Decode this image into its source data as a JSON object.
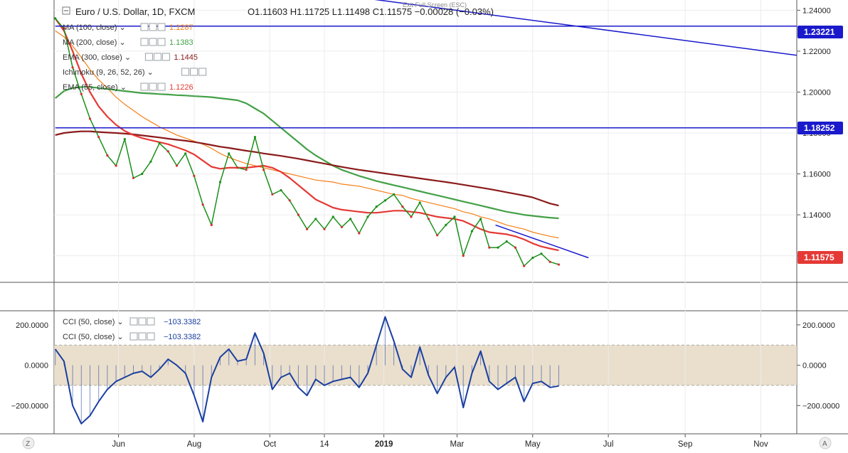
{
  "header": {
    "symbol": "Euro / U.S. Dollar",
    "interval": "1D",
    "source": "FXCM",
    "ohlc": "O1.11603  H1.11725  L1.11498  C1.11575  −0.00028 (−0.03%)",
    "fullscreen_hint": "Exit Full Screen (ESC)"
  },
  "indicators": [
    {
      "name": "MA (100, close)",
      "value": "1.1287",
      "color": "#f57f17"
    },
    {
      "name": "MA (200, close)",
      "value": "1.1383",
      "color": "#43a047"
    },
    {
      "name": "EMA (300, close)",
      "value": "1.1445",
      "color": "#8b1a1a"
    },
    {
      "name": "Ichimoku (9, 26, 52, 26)",
      "value": "",
      "color": "#999999"
    },
    {
      "name": "EMA (55, close)",
      "value": "1.1226",
      "color": "#e53935"
    }
  ],
  "cci_legends": [
    {
      "name": "CCI (50, close)",
      "value": "−103.3382",
      "color": "#1a3fa0"
    },
    {
      "name": "CCI (50, close)",
      "value": "−103.3382",
      "color": "#1a3fa0"
    }
  ],
  "price_labels": [
    {
      "text": "1.23221",
      "color": "#1a1acc"
    },
    {
      "text": "1.18252",
      "color": "#1a1acc"
    },
    {
      "text": "1.11575",
      "color": "#e53935"
    }
  ],
  "corner_labels": {
    "z": "Z",
    "a": "A"
  },
  "chart_data": {
    "type": "line",
    "x": [
      "2018-04-11",
      "2018-04-18",
      "2018-04-25",
      "2018-05-02",
      "2018-05-09",
      "2018-05-16",
      "2018-05-23",
      "2018-05-30",
      "2018-06-06",
      "2018-06-13",
      "2018-06-20",
      "2018-06-27",
      "2018-07-04",
      "2018-07-11",
      "2018-07-18",
      "2018-07-25",
      "2018-08-01",
      "2018-08-08",
      "2018-08-15",
      "2018-08-22",
      "2018-08-29",
      "2018-09-05",
      "2018-09-12",
      "2018-09-19",
      "2018-09-26",
      "2018-10-03",
      "2018-10-10",
      "2018-10-17",
      "2018-10-24",
      "2018-10-31",
      "2018-11-07",
      "2018-11-14",
      "2018-11-21",
      "2018-11-28",
      "2018-12-05",
      "2018-12-12",
      "2018-12-19",
      "2018-12-26",
      "2019-01-02",
      "2019-01-09",
      "2019-01-16",
      "2019-01-23",
      "2019-01-30",
      "2019-02-06",
      "2019-02-13",
      "2019-02-20",
      "2019-02-27",
      "2019-03-06",
      "2019-03-13",
      "2019-03-20",
      "2019-03-27",
      "2019-04-03",
      "2019-04-10",
      "2019-04-17",
      "2019-04-24",
      "2019-05-01",
      "2019-05-08",
      "2019-05-15",
      "2019-05-22"
    ],
    "price_axis_ticks": [
      "1.24000",
      "1.22000",
      "1.20000",
      "1.18000",
      "1.16000",
      "1.14000",
      "1.12000"
    ],
    "price_ylim": [
      1.107,
      1.245
    ],
    "cci_axis_ticks": [
      "200.0000",
      "0.0000",
      "−200.0000"
    ],
    "cci_ylim": [
      -340,
      270
    ],
    "cci_band": [
      -100,
      100
    ],
    "time_axis_ticks": [
      "Jun",
      "Aug",
      "Oct",
      "14",
      "2019",
      "Mar",
      "May",
      "Jul",
      "Sep",
      "Nov"
    ],
    "series": [
      {
        "name": "MA (100, close)",
        "color": "#f57f17",
        "values": [
          1.23,
          1.227,
          1.2225,
          1.217,
          1.211,
          1.206,
          1.202,
          1.1975,
          1.194,
          1.191,
          1.188,
          1.1855,
          1.183,
          1.181,
          1.179,
          1.1775,
          1.176,
          1.1745,
          1.1725,
          1.17,
          1.168,
          1.1665,
          1.165,
          1.164,
          1.163,
          1.162,
          1.161,
          1.16,
          1.159,
          1.158,
          1.157,
          1.1565,
          1.156,
          1.155,
          1.1545,
          1.154,
          1.153,
          1.152,
          1.151,
          1.15,
          1.1495,
          1.148,
          1.147,
          1.146,
          1.145,
          1.144,
          1.143,
          1.1415,
          1.1405,
          1.139,
          1.138,
          1.1365,
          1.135,
          1.134,
          1.133,
          1.1315,
          1.1305,
          1.1295,
          1.1287
        ]
      },
      {
        "name": "MA (200, close)",
        "color": "#43a047",
        "values": [
          1.197,
          1.2005,
          1.202,
          1.2025,
          1.2025,
          1.202,
          1.2015,
          1.201,
          1.2005,
          1.2,
          1.1995,
          1.1993,
          1.199,
          1.1988,
          1.1985,
          1.1983,
          1.198,
          1.1978,
          1.1975,
          1.197,
          1.1965,
          1.196,
          1.1945,
          1.192,
          1.1895,
          1.186,
          1.1825,
          1.179,
          1.1755,
          1.172,
          1.169,
          1.1665,
          1.164,
          1.162,
          1.1605,
          1.159,
          1.1578,
          1.1565,
          1.1555,
          1.1545,
          1.1535,
          1.1525,
          1.1515,
          1.1505,
          1.1495,
          1.1485,
          1.1475,
          1.1465,
          1.1455,
          1.1445,
          1.1435,
          1.1425,
          1.1415,
          1.1408,
          1.14,
          1.1395,
          1.139,
          1.1386,
          1.1383
        ]
      },
      {
        "name": "EMA (300, close)",
        "color": "#8b1a1a",
        "values": [
          1.179,
          1.18,
          1.1805,
          1.1808,
          1.1808,
          1.1805,
          1.1802,
          1.18,
          1.1797,
          1.1793,
          1.1788,
          1.1783,
          1.1778,
          1.1772,
          1.1767,
          1.1762,
          1.1756,
          1.1749,
          1.1741,
          1.1733,
          1.1727,
          1.172,
          1.1713,
          1.1707,
          1.17,
          1.1694,
          1.1688,
          1.1681,
          1.1674,
          1.1666,
          1.1658,
          1.165,
          1.1642,
          1.1634,
          1.1627,
          1.162,
          1.1614,
          1.1608,
          1.1602,
          1.1596,
          1.159,
          1.1584,
          1.1578,
          1.1572,
          1.1566,
          1.156,
          1.1554,
          1.1547,
          1.154,
          1.1533,
          1.1526,
          1.1518,
          1.151,
          1.1502,
          1.1494,
          1.1485,
          1.147,
          1.1455,
          1.1445
        ]
      },
      {
        "name": "EMA (55, close)",
        "color": "#e53935",
        "values": [
          1.236,
          1.23,
          1.22,
          1.209,
          1.2,
          1.193,
          1.188,
          1.184,
          1.181,
          1.179,
          1.1775,
          1.1765,
          1.1755,
          1.1745,
          1.173,
          1.1715,
          1.1695,
          1.1665,
          1.1635,
          1.1625,
          1.163,
          1.163,
          1.163,
          1.1635,
          1.164,
          1.163,
          1.161,
          1.158,
          1.1545,
          1.151,
          1.1475,
          1.1455,
          1.1435,
          1.1425,
          1.142,
          1.1415,
          1.141,
          1.141,
          1.1415,
          1.142,
          1.142,
          1.1415,
          1.141,
          1.14,
          1.139,
          1.1385,
          1.138,
          1.137,
          1.135,
          1.133,
          1.1315,
          1.131,
          1.1305,
          1.1295,
          1.128,
          1.126,
          1.1245,
          1.1235,
          1.1226
        ]
      },
      {
        "name": "EUR/USD close",
        "color": "#1b8f1b",
        "values": [
          1.236,
          1.231,
          1.212,
          1.199,
          1.187,
          1.178,
          1.169,
          1.164,
          1.177,
          1.158,
          1.16,
          1.166,
          1.175,
          1.171,
          1.164,
          1.17,
          1.159,
          1.145,
          1.135,
          1.156,
          1.17,
          1.163,
          1.162,
          1.178,
          1.162,
          1.15,
          1.152,
          1.147,
          1.14,
          1.133,
          1.138,
          1.133,
          1.139,
          1.134,
          1.138,
          1.131,
          1.139,
          1.144,
          1.147,
          1.15,
          1.144,
          1.139,
          1.146,
          1.138,
          1.13,
          1.135,
          1.139,
          1.12,
          1.132,
          1.138,
          1.124,
          1.124,
          1.127,
          1.124,
          1.115,
          1.119,
          1.121,
          1.117,
          1.1157
        ]
      },
      {
        "name": "CCI (50, close)",
        "color": "#1a3fa0",
        "values": [
          80,
          20,
          -200,
          -290,
          -250,
          -180,
          -120,
          -80,
          -60,
          -40,
          -30,
          -60,
          -20,
          30,
          0,
          -40,
          -150,
          -280,
          -60,
          40,
          80,
          20,
          30,
          160,
          60,
          -120,
          -60,
          -40,
          -110,
          -150,
          -70,
          -100,
          -80,
          -70,
          -60,
          -110,
          -40,
          100,
          240,
          120,
          -20,
          -60,
          90,
          -50,
          -140,
          -60,
          -10,
          -210,
          -40,
          70,
          -80,
          -120,
          -90,
          -60,
          -180,
          -90,
          -80,
          -110,
          -103
        ]
      }
    ],
    "lines": [
      {
        "name": "horizontal 1.23221",
        "color": "#1a1acc",
        "from": [
          "2018-04-11",
          1.23221
        ],
        "to": [
          "2019-11-30",
          1.23221
        ]
      },
      {
        "name": "horizontal 1.18252",
        "color": "#1a1acc",
        "from": [
          "2018-04-11",
          1.18252
        ],
        "to": [
          "2019-11-30",
          1.18252
        ]
      },
      {
        "name": "long trend line",
        "color": "#1a1acc",
        "from": [
          "2018-12-15",
          1.246
        ],
        "to": [
          "2019-11-30",
          1.218
        ]
      },
      {
        "name": "short trend line",
        "color": "#1a1acc",
        "from": [
          "2019-04-01",
          1.135
        ],
        "to": [
          "2019-06-15",
          1.119
        ]
      }
    ]
  }
}
